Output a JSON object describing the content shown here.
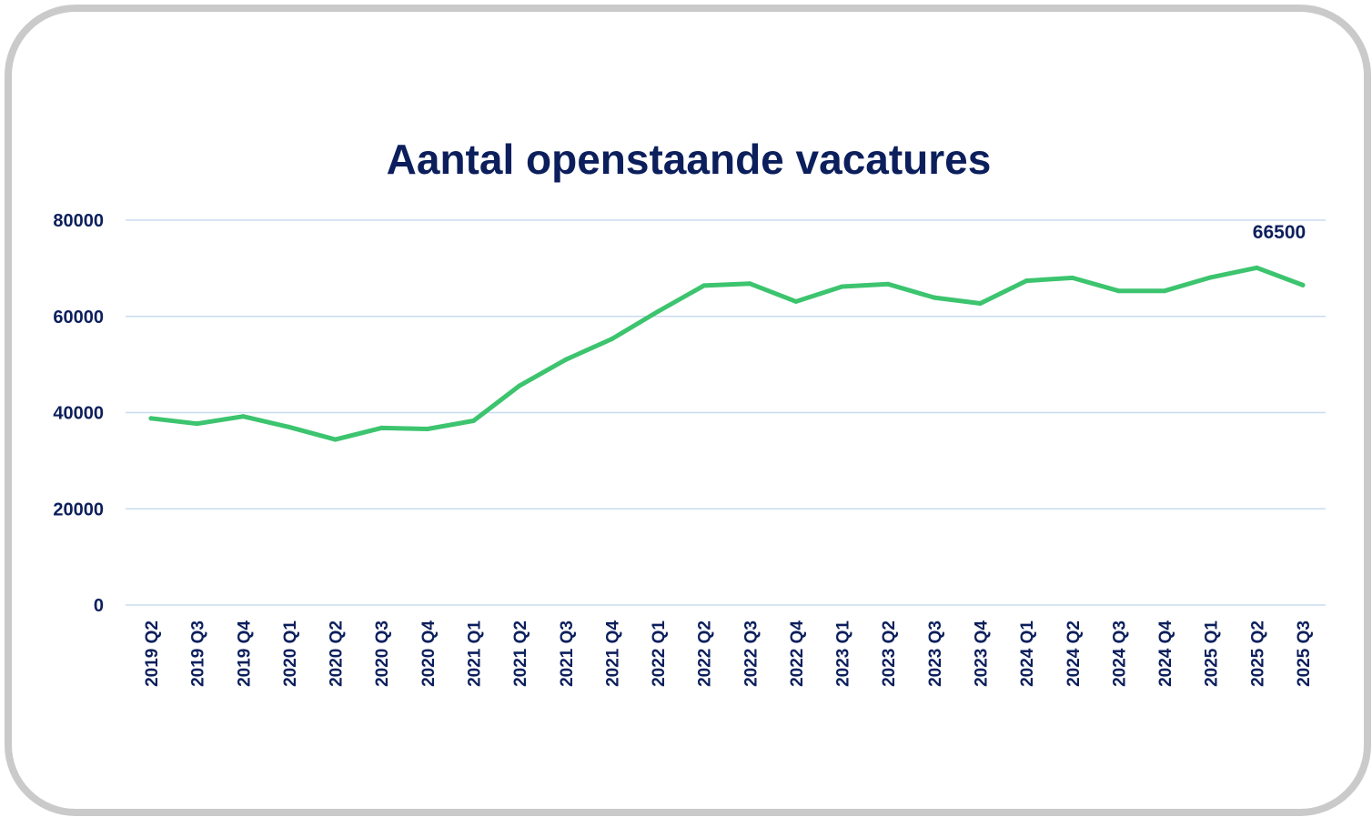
{
  "chart_data": {
    "type": "line",
    "title": "Aantal openstaande vacatures",
    "xlabel": "",
    "ylabel": "",
    "ylim": [
      0,
      80000
    ],
    "yticks": [
      "0",
      "20000",
      "40000",
      "60000",
      "80000"
    ],
    "grid": true,
    "legend": "none",
    "categories": [
      "2019 Q2",
      "2019 Q3",
      "2019 Q4",
      "2020 Q1",
      "2020 Q2",
      "2020 Q3",
      "2020 Q4",
      "2021 Q1",
      "2021 Q2",
      "2021 Q3",
      "2021 Q4",
      "2022 Q1",
      "2022 Q2",
      "2022 Q3",
      "2022 Q4",
      "2023 Q1",
      "2023 Q2",
      "2023 Q3",
      "2023 Q4",
      "2024 Q1",
      "2024 Q2",
      "2024 Q3",
      "2024 Q4",
      "2025 Q1",
      "2025 Q2",
      "2025 Q3"
    ],
    "series": [
      {
        "values": [
          38800,
          37700,
          39200,
          37000,
          34400,
          36800,
          36600,
          38300,
          45600,
          51000,
          55300,
          61000,
          66400,
          66800,
          63100,
          66200,
          66700,
          63900,
          62700,
          67400,
          68000,
          65300,
          65300,
          68100,
          70100,
          66500
        ]
      }
    ],
    "annotations": [
      {
        "category": "2025 Q3",
        "text": "66500"
      }
    ],
    "colors": {
      "line": "#3cc46e",
      "text": "#0c1f5c",
      "grid": "#c8dcf0",
      "frame": "#cacaca"
    }
  }
}
